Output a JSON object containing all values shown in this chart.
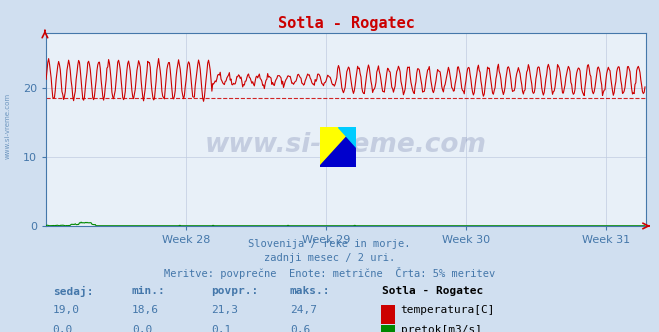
{
  "title": "Sotla - Rogatec",
  "title_color": "#cc0000",
  "bg_color": "#d0dff0",
  "plot_bg_color": "#e8f0f8",
  "grid_color": "#c0cce0",
  "x_ticks": [
    168,
    336,
    504,
    672
  ],
  "x_tick_labels": [
    "Week 28",
    "Week 29",
    "Week 30",
    "Week 31"
  ],
  "ylim": [
    0,
    28
  ],
  "y_ticks": [
    0,
    10,
    20
  ],
  "temp_avg": 21.3,
  "temp_min": 18.6,
  "temp_max": 24.7,
  "temp_now": 19.0,
  "flow_avg": 0.1,
  "flow_min": 0.0,
  "flow_max": 0.6,
  "flow_now": 0.0,
  "temp_line_color": "#cc0000",
  "temp_dashed_color": "#cc0000",
  "flow_line_color": "#008800",
  "axis_color": "#4477aa",
  "tick_color": "#4477aa",
  "watermark": "www.si-vreme.com",
  "watermark_color": "#223377",
  "watermark_alpha": 0.18,
  "subtitle1": "Slovenija / reke in morje.",
  "subtitle2": "zadnji mesec / 2 uri.",
  "subtitle3": "Meritve: povprečne  Enote: metrične  Črta: 5% meritev",
  "subtitle_color": "#4477aa",
  "legend_title": "Sotla - Rogatec",
  "label_sedaj": "sedaj:",
  "label_min": "min.:",
  "label_povpr": "povpr.:",
  "label_maks": "maks.:",
  "n_points": 720,
  "sidewater_text": "www.si-vreme.com"
}
